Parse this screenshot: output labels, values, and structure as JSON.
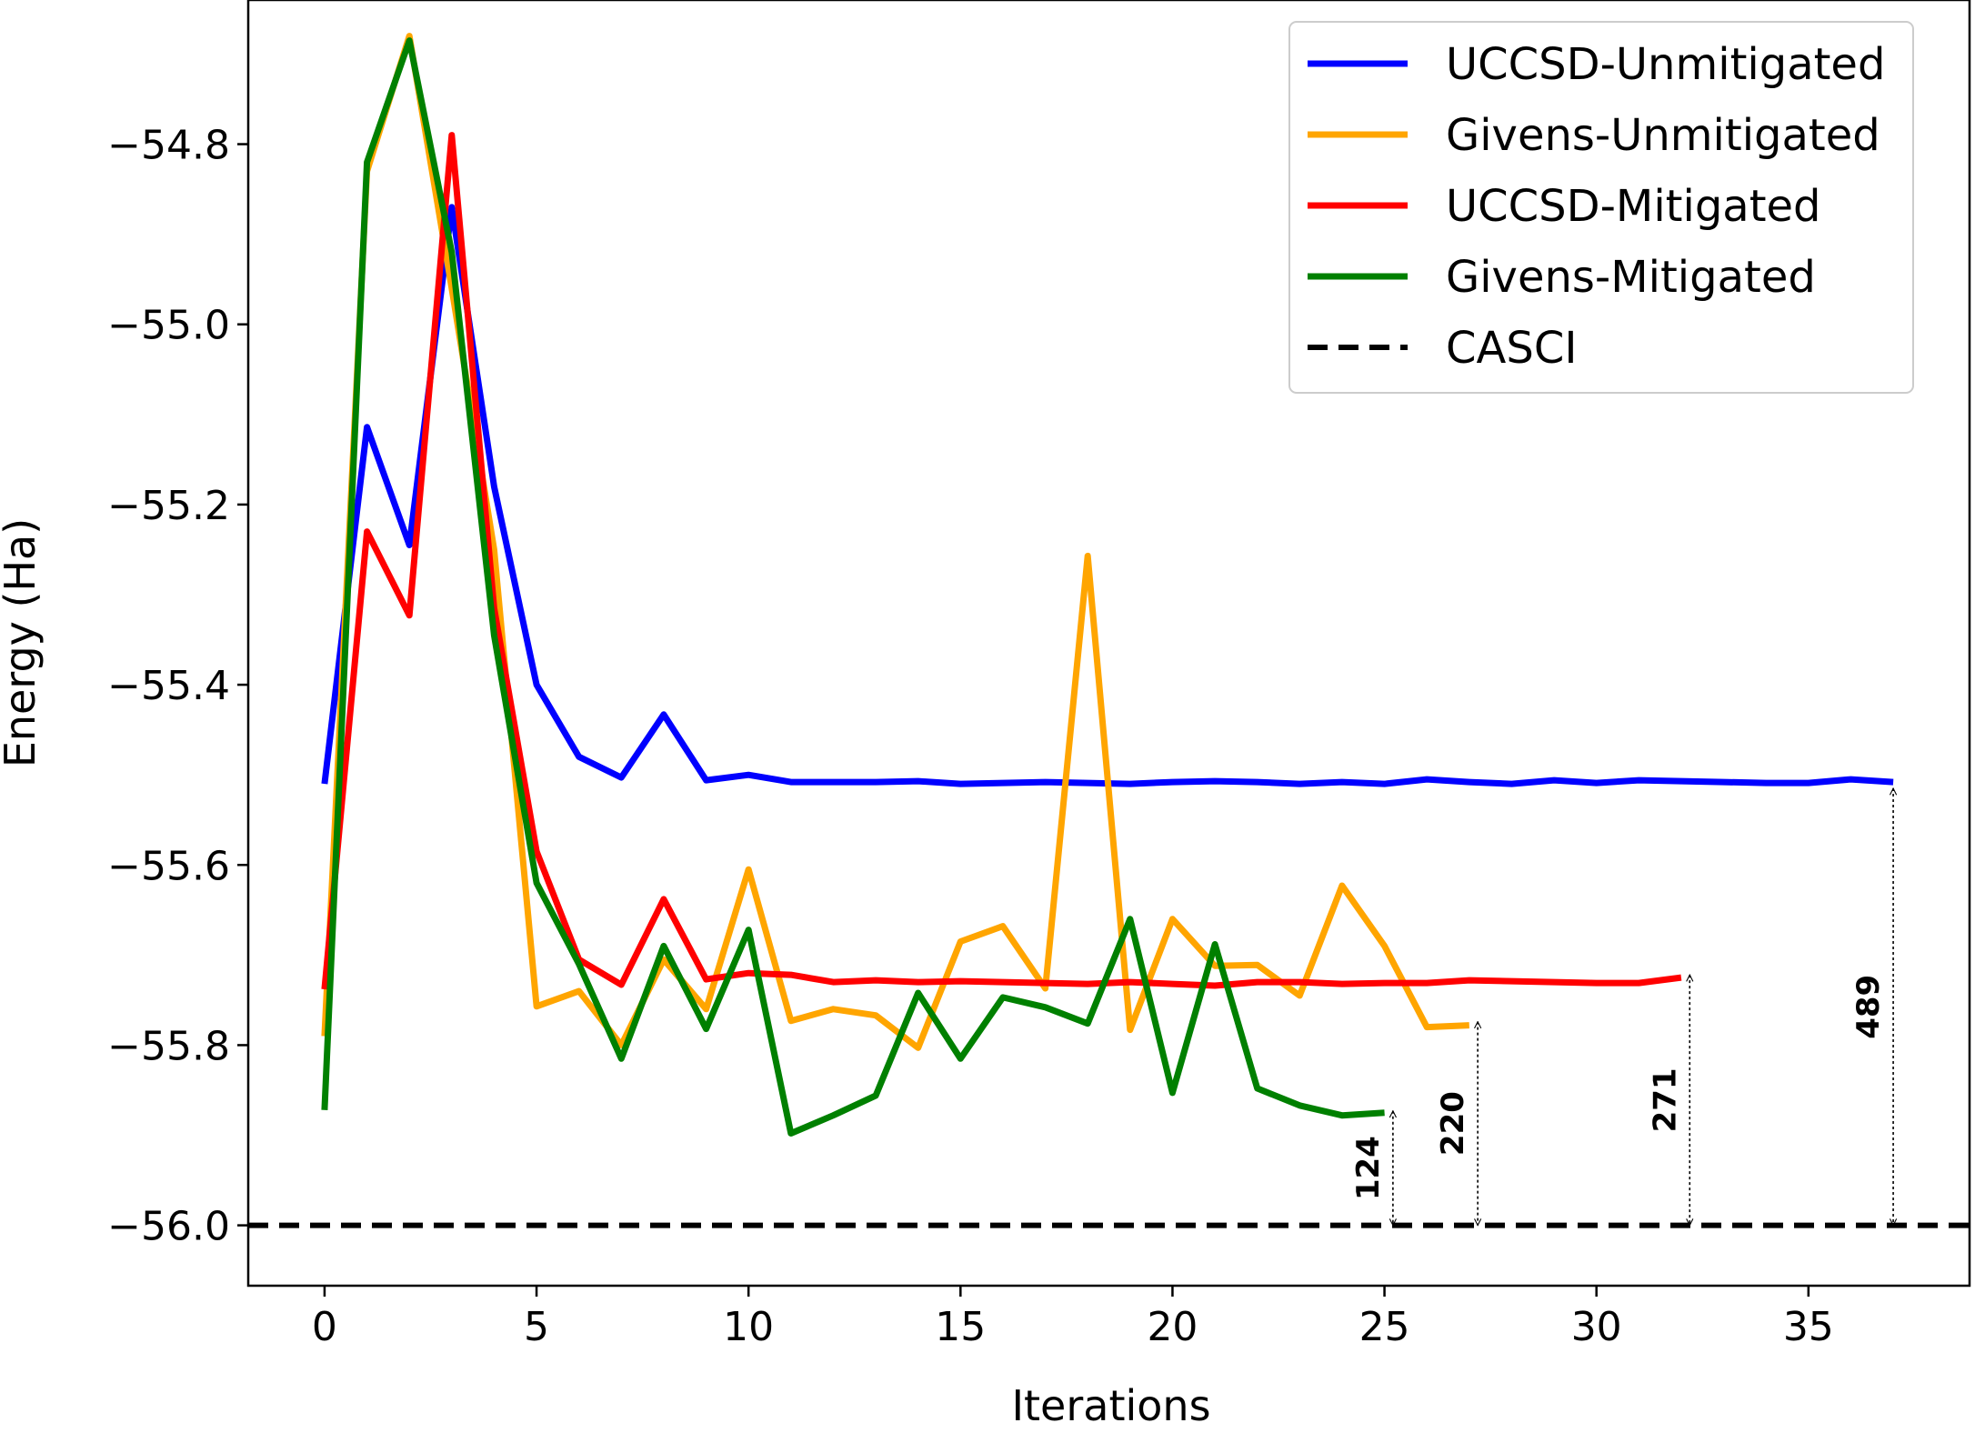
{
  "chart_data": {
    "type": "line",
    "title": "",
    "xlabel": "Iterations",
    "ylabel": "Energy (Ha)",
    "xlim": [
      -1.8,
      38.8
    ],
    "ylim": [
      -56.067,
      -54.64
    ],
    "x_ticks": [
      0,
      5,
      10,
      15,
      20,
      25,
      30,
      35
    ],
    "x_tick_labels": [
      "0",
      "5",
      "10",
      "15",
      "20",
      "25",
      "30",
      "35"
    ],
    "y_ticks": [
      -54.8,
      -55.0,
      -55.2,
      -55.4,
      -55.6,
      -55.8,
      -56.0
    ],
    "y_tick_labels": [
      "−54.8",
      "−55.0",
      "−55.2",
      "−55.4",
      "−55.6",
      "−55.8",
      "−56.0"
    ],
    "grid": false,
    "legend_position": "top-right",
    "series": [
      {
        "name": "UCCSD-Unmitigated",
        "color": "#0000ff",
        "x": [
          0,
          1,
          2,
          3,
          4,
          5,
          6,
          7,
          8,
          9,
          10,
          11,
          12,
          13,
          14,
          15,
          16,
          17,
          18,
          19,
          20,
          21,
          22,
          23,
          24,
          25,
          26,
          27,
          28,
          29,
          30,
          31,
          32,
          33,
          34,
          35,
          36,
          37
        ],
        "values": [
          -55.51,
          -55.114,
          -55.245,
          -54.87,
          -55.18,
          -55.4,
          -55.48,
          -55.503,
          -55.433,
          -55.506,
          -55.5,
          -55.508,
          -55.508,
          -55.508,
          -55.507,
          -55.51,
          -55.509,
          -55.508,
          -55.509,
          -55.51,
          -55.508,
          -55.507,
          -55.508,
          -55.51,
          -55.508,
          -55.51,
          -55.505,
          -55.508,
          -55.51,
          -55.506,
          -55.509,
          -55.506,
          -55.507,
          -55.508,
          -55.509,
          -55.509,
          -55.505,
          -55.508
        ]
      },
      {
        "name": "Givens-Unmitigated",
        "color": "#ffa500",
        "x": [
          0,
          1,
          2,
          3,
          4,
          5,
          6,
          7,
          8,
          9,
          10,
          11,
          12,
          13,
          14,
          15,
          16,
          17,
          18,
          19,
          20,
          21,
          22,
          23,
          24,
          25,
          26,
          27
        ],
        "values": [
          -55.79,
          -54.83,
          -54.68,
          -54.96,
          -55.25,
          -55.757,
          -55.74,
          -55.8,
          -55.705,
          -55.76,
          -55.605,
          -55.773,
          -55.76,
          -55.767,
          -55.803,
          -55.685,
          -55.668,
          -55.737,
          -55.257,
          -55.783,
          -55.66,
          -55.712,
          -55.711,
          -55.745,
          -55.623,
          -55.69,
          -55.78,
          -55.778
        ]
      },
      {
        "name": "UCCSD-Mitigated",
        "color": "#ff0000",
        "x": [
          0,
          1,
          2,
          3,
          4,
          5,
          6,
          7,
          8,
          9,
          10,
          11,
          12,
          13,
          14,
          15,
          16,
          17,
          18,
          19,
          20,
          21,
          22,
          23,
          24,
          25,
          26,
          27,
          28,
          29,
          30,
          31,
          32
        ],
        "values": [
          -55.738,
          -55.23,
          -55.323,
          -54.79,
          -55.315,
          -55.585,
          -55.705,
          -55.733,
          -55.638,
          -55.727,
          -55.72,
          -55.722,
          -55.73,
          -55.728,
          -55.73,
          -55.729,
          -55.73,
          -55.731,
          -55.732,
          -55.73,
          -55.732,
          -55.734,
          -55.73,
          -55.73,
          -55.732,
          -55.731,
          -55.731,
          -55.728,
          -55.729,
          -55.73,
          -55.731,
          -55.731,
          -55.725
        ]
      },
      {
        "name": "Givens-Mitigated",
        "color": "#008000",
        "x": [
          0,
          1,
          2,
          3,
          4,
          5,
          6,
          7,
          8,
          9,
          10,
          11,
          12,
          13,
          14,
          15,
          16,
          17,
          18,
          19,
          20,
          21,
          22,
          23,
          24,
          25
        ],
        "values": [
          -55.872,
          -54.82,
          -54.685,
          -54.92,
          -55.345,
          -55.62,
          -55.71,
          -55.815,
          -55.69,
          -55.782,
          -55.672,
          -55.898,
          -55.878,
          -55.856,
          -55.742,
          -55.815,
          -55.747,
          -55.758,
          -55.776,
          -55.66,
          -55.853,
          -55.688,
          -55.848,
          -55.867,
          -55.878,
          -55.875
        ]
      },
      {
        "name": "CASCI",
        "color": "#000000",
        "dashed": true,
        "values": [
          -56.0
        ]
      }
    ],
    "annotations": [
      {
        "label": "124",
        "x": 25.2,
        "y_top": -55.873,
        "y_bottom": -56.0
      },
      {
        "label": "220",
        "x": 27.2,
        "y_top": -55.774,
        "y_bottom": -56.0
      },
      {
        "label": "271",
        "x": 32.2,
        "y_top": -55.722,
        "y_bottom": -56.0
      },
      {
        "label": "489",
        "x": 37.0,
        "y_top": -55.515,
        "y_bottom": -56.0
      }
    ]
  }
}
